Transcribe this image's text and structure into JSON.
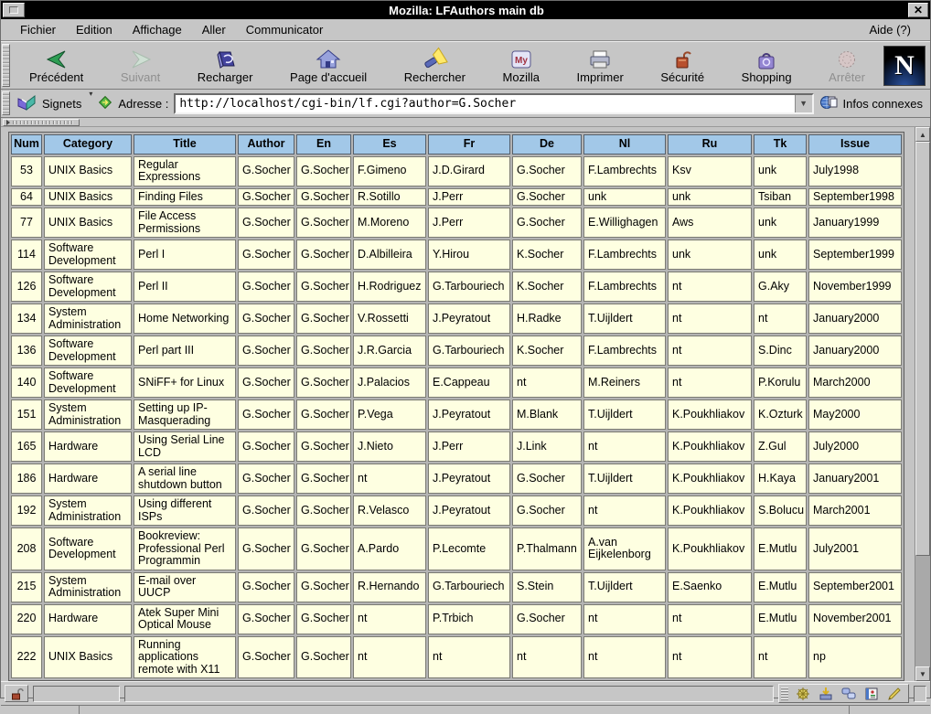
{
  "window": {
    "title": "Mozilla: LFAuthors main db",
    "close_glyph": "✕"
  },
  "menu": {
    "items": [
      "Fichier",
      "Edition",
      "Affichage",
      "Aller",
      "Communicator"
    ],
    "help": "Aide (?)"
  },
  "toolbar": {
    "buttons": [
      {
        "label": "Précédent",
        "icon": "back-icon",
        "disabled": false
      },
      {
        "label": "Suivant",
        "icon": "forward-icon",
        "disabled": true
      },
      {
        "label": "Recharger",
        "icon": "reload-icon",
        "disabled": false
      },
      {
        "label": "Page d'accueil",
        "icon": "home-icon",
        "disabled": false
      },
      {
        "label": "Rechercher",
        "icon": "search-icon",
        "disabled": false
      },
      {
        "label": "Mozilla",
        "icon": "mozilla-icon",
        "disabled": false
      },
      {
        "label": "Imprimer",
        "icon": "print-icon",
        "disabled": false
      },
      {
        "label": "Sécurité",
        "icon": "security-icon",
        "disabled": false
      },
      {
        "label": "Shopping",
        "icon": "shopping-icon",
        "disabled": false
      },
      {
        "label": "Arrêter",
        "icon": "stop-icon",
        "disabled": true
      }
    ],
    "logo_letter": "N"
  },
  "location_bar": {
    "bookmarks_label": "Signets",
    "address_label": "Adresse :",
    "url": "http://localhost/cgi-bin/lf.cgi?author=G.Socher",
    "related_label": "Infos connexes"
  },
  "icons": {
    "mozilla_badge": "My"
  },
  "colors": {
    "chrome": "#c6c6c6",
    "titlebar_bg": "#000000",
    "titlebar_fg": "#ffffff",
    "table_header_bg": "#a2c8e8",
    "table_cell_bg": "#feffe1"
  },
  "table": {
    "headers": [
      "Num",
      "Category",
      "Title",
      "Author",
      "En",
      "Es",
      "Fr",
      "De",
      "Nl",
      "Ru",
      "Tk",
      "Issue"
    ],
    "rows": [
      [
        "53",
        "UNIX Basics",
        "Regular Expressions",
        "G.Socher",
        "G.Socher",
        "F.Gimeno",
        "J.D.Girard",
        "G.Socher",
        "F.Lambrechts",
        "Ksv",
        "unk",
        "July1998"
      ],
      [
        "64",
        "UNIX Basics",
        "Finding Files",
        "G.Socher",
        "G.Socher",
        "R.Sotillo",
        "J.Perr",
        "G.Socher",
        "unk",
        "unk",
        "Tsiban",
        "September1998"
      ],
      [
        "77",
        "UNIX Basics",
        "File Access Permissions",
        "G.Socher",
        "G.Socher",
        "M.Moreno",
        "J.Perr",
        "G.Socher",
        "E.Willighagen",
        "Aws",
        "unk",
        "January1999"
      ],
      [
        "114",
        "Software Development",
        "Perl I",
        "G.Socher",
        "G.Socher",
        "D.Albilleira",
        "Y.Hirou",
        "K.Socher",
        "F.Lambrechts",
        "unk",
        "unk",
        "September1999"
      ],
      [
        "126",
        "Software Development",
        "Perl II",
        "G.Socher",
        "G.Socher",
        "H.Rodriguez",
        "G.Tarbouriech",
        "K.Socher",
        "F.Lambrechts",
        "nt",
        "G.Aky",
        "November1999"
      ],
      [
        "134",
        "System Administration",
        "Home Networking",
        "G.Socher",
        "G.Socher",
        "V.Rossetti",
        "J.Peyratout",
        "H.Radke",
        "T.Uijldert",
        "nt",
        "nt",
        "January2000"
      ],
      [
        "136",
        "Software Development",
        "Perl part III",
        "G.Socher",
        "G.Socher",
        "J.R.Garcia",
        "G.Tarbouriech",
        "K.Socher",
        "F.Lambrechts",
        "nt",
        "S.Dinc",
        "January2000"
      ],
      [
        "140",
        "Software Development",
        "SNiFF+ for Linux",
        "G.Socher",
        "G.Socher",
        "J.Palacios",
        "E.Cappeau",
        "nt",
        "M.Reiners",
        "nt",
        "P.Korulu",
        "March2000"
      ],
      [
        "151",
        "System Administration",
        "Setting up IP-Masquerading",
        "G.Socher",
        "G.Socher",
        "P.Vega",
        "J.Peyratout",
        "M.Blank",
        "T.Uijldert",
        "K.Poukhliakov",
        "K.Ozturk",
        "May2000"
      ],
      [
        "165",
        "Hardware",
        "Using Serial Line LCD",
        "G.Socher",
        "G.Socher",
        "J.Nieto",
        "J.Perr",
        "J.Link",
        "nt",
        "K.Poukhliakov",
        "Z.Gul",
        "July2000"
      ],
      [
        "186",
        "Hardware",
        "A serial line shutdown button",
        "G.Socher",
        "G.Socher",
        "nt",
        "J.Peyratout",
        "G.Socher",
        "T.Uijldert",
        "K.Poukhliakov",
        "H.Kaya",
        "January2001"
      ],
      [
        "192",
        "System Administration",
        "Using different ISPs",
        "G.Socher",
        "G.Socher",
        "R.Velasco",
        "J.Peyratout",
        "G.Socher",
        "nt",
        "K.Poukhliakov",
        "S.Bolucu",
        "March2001"
      ],
      [
        "208",
        "Software Development",
        "Bookreview: Professional Perl Programmin",
        "G.Socher",
        "G.Socher",
        "A.Pardo",
        "P.Lecomte",
        "P.Thalmann",
        "A.van Eijkelenborg",
        "K.Poukhliakov",
        "E.Mutlu",
        "July2001"
      ],
      [
        "215",
        "System Administration",
        "E-mail over UUCP",
        "G.Socher",
        "G.Socher",
        "R.Hernando",
        "G.Tarbouriech",
        "S.Stein",
        "T.Uijldert",
        "E.Saenko",
        "E.Mutlu",
        "September2001"
      ],
      [
        "220",
        "Hardware",
        "Atek Super Mini Optical Mouse",
        "G.Socher",
        "G.Socher",
        "nt",
        "P.Trbich",
        "G.Socher",
        "nt",
        "nt",
        "E.Mutlu",
        "November2001"
      ],
      [
        "222",
        "UNIX Basics",
        "Running applications remote with X11",
        "G.Socher",
        "G.Socher",
        "nt",
        "nt",
        "nt",
        "nt",
        "nt",
        "nt",
        "np"
      ]
    ]
  }
}
